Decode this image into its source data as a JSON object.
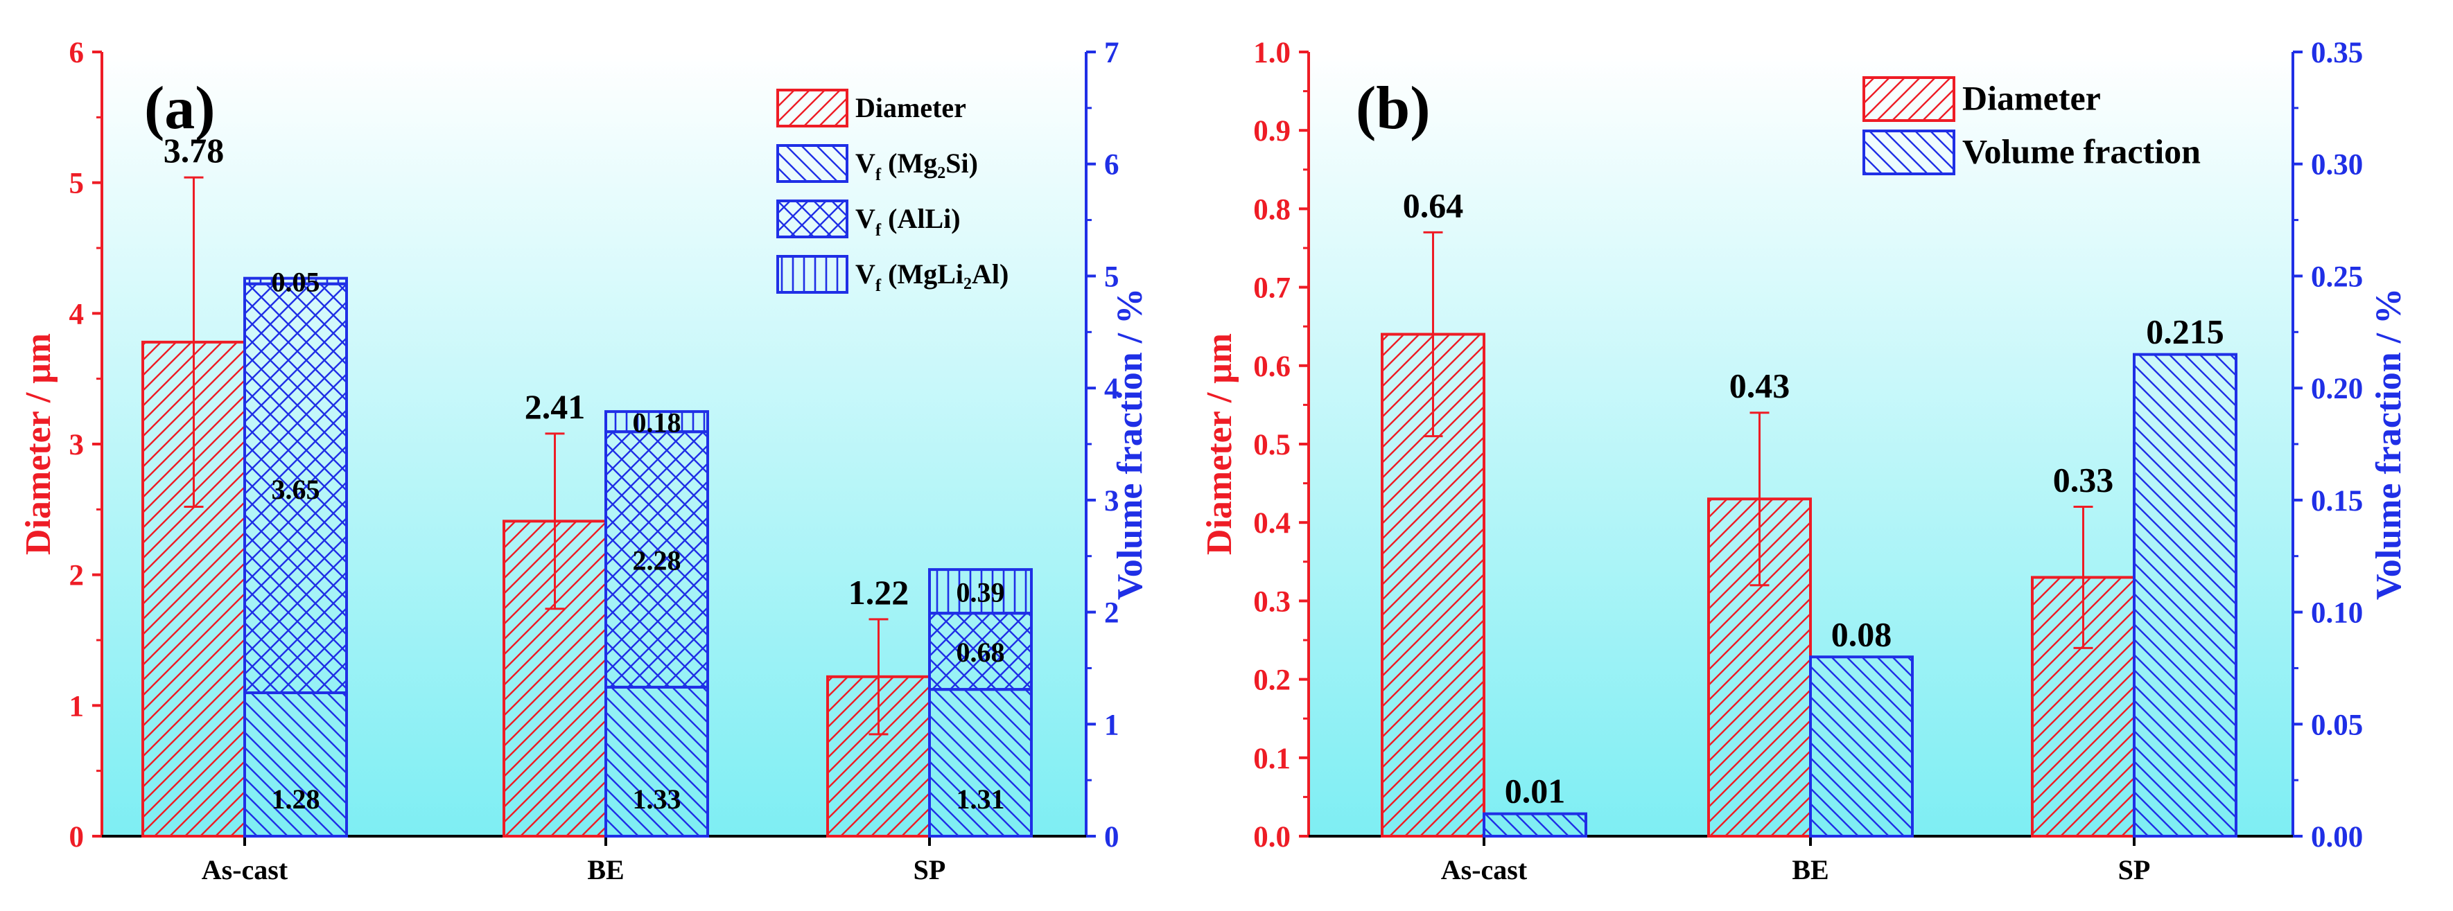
{
  "colors": {
    "red": "#ee1c25",
    "blue": "#1f2fe6",
    "bg_top": "#ffffff",
    "bg_bottom": "#7eeef3"
  },
  "chart_data": [
    {
      "type": "bar",
      "panel_label": "(a)",
      "categories": [
        "As-cast",
        "BE",
        "SP"
      ],
      "ylabel": "Diameter / μm",
      "y2label": "Volume fraction / %",
      "ylim": [
        0,
        6
      ],
      "yticks": [
        "0",
        "1",
        "2",
        "3",
        "4",
        "5",
        "6"
      ],
      "y2lim": [
        0,
        7
      ],
      "y2ticks": [
        "0",
        "1",
        "2",
        "3",
        "4",
        "5",
        "6",
        "7"
      ],
      "legend_position": "top-right",
      "diameter": {
        "name": "Diameter",
        "values": [
          3.78,
          2.41,
          1.22
        ],
        "errors": [
          1.26,
          0.67,
          0.44
        ],
        "labels": [
          "3.78",
          "2.41",
          "1.22"
        ]
      },
      "stacked_series": [
        {
          "name": "V",
          "sub": "f",
          "suffix": " (Mg₂Si)",
          "values": [
            1.28,
            1.33,
            1.31
          ],
          "labels": [
            "1.28",
            "1.33",
            "1.31"
          ]
        },
        {
          "name": "V",
          "sub": "f",
          "suffix": " (AlLi)",
          "values": [
            3.65,
            2.28,
            0.68
          ],
          "labels": [
            "3.65",
            "2.28",
            "0.68"
          ]
        },
        {
          "name": "V",
          "sub": "f",
          "suffix": " (MgLi₂Al)",
          "values": [
            0.05,
            0.18,
            0.39
          ],
          "labels": [
            "0.05",
            "0.18",
            "0.39"
          ]
        }
      ],
      "legend": [
        {
          "label": "Diameter"
        },
        {
          "label": "V",
          "sub": "f",
          "suffix": " (Mg₂Si)"
        },
        {
          "label": "V",
          "sub": "f",
          "suffix": " (AlLi)"
        },
        {
          "label": "V",
          "sub": "f",
          "suffix": " (MgLi₂Al)"
        }
      ]
    },
    {
      "type": "bar",
      "panel_label": "(b)",
      "categories": [
        "As-cast",
        "BE",
        "SP"
      ],
      "ylabel": "Diameter / μm",
      "y2label": "Volume fraction / %",
      "ylim": [
        0,
        1.0
      ],
      "yticks": [
        "0.0",
        "0.1",
        "0.2",
        "0.3",
        "0.4",
        "0.5",
        "0.6",
        "0.7",
        "0.8",
        "0.9",
        "1.0"
      ],
      "y2lim": [
        0,
        0.35
      ],
      "y2ticks": [
        "0.00",
        "0.05",
        "0.10",
        "0.15",
        "0.20",
        "0.25",
        "0.30",
        "0.35"
      ],
      "legend_position": "top-right",
      "diameter": {
        "name": "Diameter",
        "values": [
          0.64,
          0.43,
          0.33
        ],
        "errors": [
          0.13,
          0.11,
          0.09
        ],
        "labels": [
          "0.64",
          "0.43",
          "0.33"
        ]
      },
      "volume_fraction": {
        "name": "Volume fraction",
        "values": [
          0.01,
          0.08,
          0.215
        ],
        "labels": [
          "0.01",
          "0.08",
          "0.215"
        ]
      },
      "legend": [
        {
          "label": "Diameter"
        },
        {
          "label": "Volume fraction"
        }
      ]
    }
  ]
}
